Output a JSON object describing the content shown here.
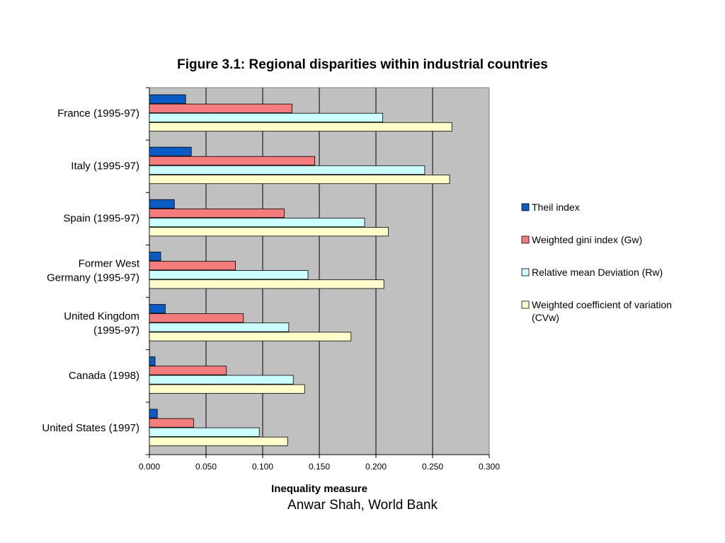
{
  "chart_data": {
    "type": "bar",
    "orientation": "horizontal",
    "title": "Figure 3.1: Regional disparities within industrial countries",
    "xlabel": "Inequality measure",
    "ylabel": "",
    "xlim": [
      0,
      0.3
    ],
    "x_ticks": [
      "0.000",
      "0.050",
      "0.100",
      "0.150",
      "0.200",
      "0.250",
      "0.300"
    ],
    "grid": true,
    "legend_position": "right",
    "categories": [
      [
        "France (1995-97)"
      ],
      [
        "Italy (1995-97)"
      ],
      [
        "Spain (1995-97)"
      ],
      [
        "Former West",
        "Germany (1995-97)"
      ],
      [
        "United Kingdom",
        "(1995-97)"
      ],
      [
        "Canada (1998)"
      ],
      [
        "United States (1997)"
      ]
    ],
    "series": [
      {
        "name": [
          "Theil index"
        ],
        "color": "#0a5bc4",
        "values": [
          0.032,
          0.037,
          0.022,
          0.01,
          0.014,
          0.005,
          0.007
        ]
      },
      {
        "name": [
          "Weighted gini index (Gw)"
        ],
        "color": "#f47c7c",
        "values": [
          0.126,
          0.146,
          0.119,
          0.076,
          0.083,
          0.068,
          0.039
        ]
      },
      {
        "name": [
          "Relative mean Deviation (Rw)"
        ],
        "color": "#ccffff",
        "values": [
          0.206,
          0.243,
          0.19,
          0.14,
          0.123,
          0.127,
          0.097
        ]
      },
      {
        "name": [
          "Weighted coefficient of variation",
          "(CVw)"
        ],
        "color": "#ffffcc",
        "values": [
          0.267,
          0.265,
          0.211,
          0.207,
          0.178,
          0.137,
          0.122
        ]
      }
    ],
    "plot_background": "#c0c0c0"
  },
  "footer": "Anwar Shah, World Bank"
}
